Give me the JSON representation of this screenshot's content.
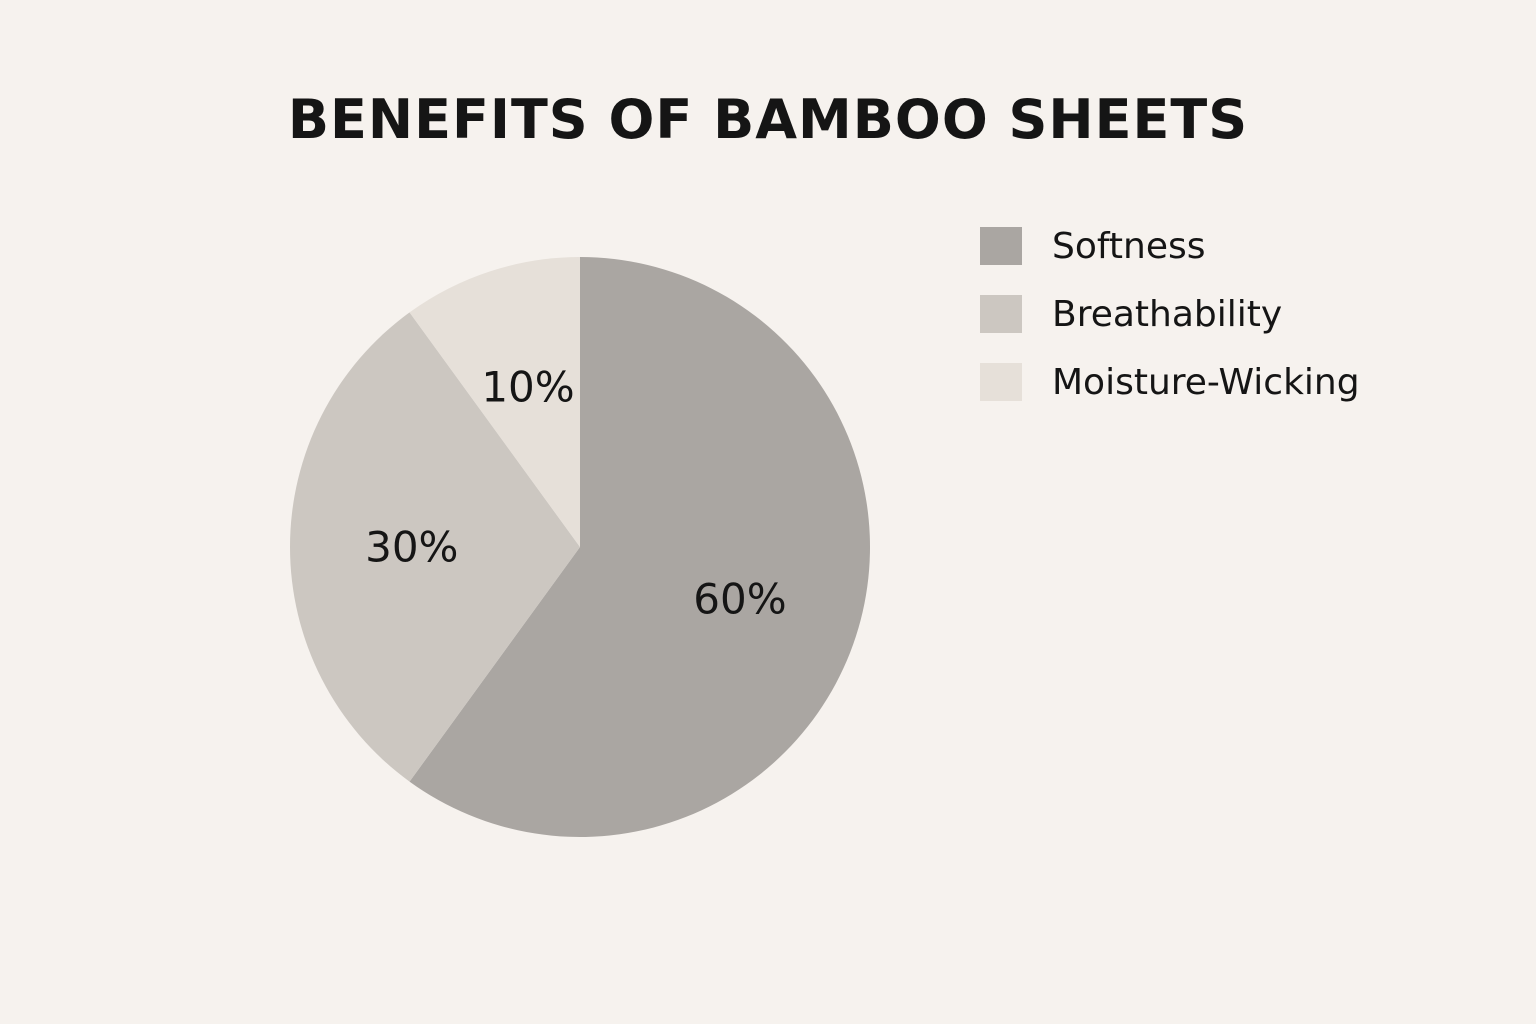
{
  "chart_data": {
    "type": "pie",
    "title": "BENEFITS OF BAMBOO SHEETS",
    "categories": [
      "Softness",
      "Breathability",
      "Moisture-Wicking"
    ],
    "values": [
      60,
      30,
      10
    ],
    "labels": [
      "60%",
      "30%",
      "10%"
    ],
    "colors": [
      "#aaa6a2",
      "#ccc7c1",
      "#e6e0d9"
    ],
    "legend_position": "top-right",
    "start_angle": "12 o'clock",
    "direction": "clockwise"
  },
  "colors": {
    "background": "#f6f2ee",
    "text": "#151515"
  }
}
